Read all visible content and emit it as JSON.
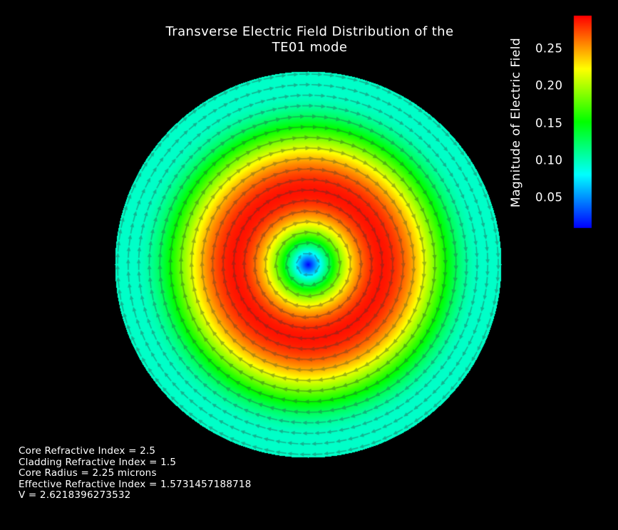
{
  "chart_data": {
    "type": "vector-field-heatmap",
    "title_lines": [
      "Transverse Electric Field Distribution of the",
      "TE01 mode"
    ],
    "colorbar": {
      "label": "Magnitude of Electric Field",
      "ticks": [
        {
          "value": 0.05,
          "label": "0.05"
        },
        {
          "value": 0.1,
          "label": "0.10"
        },
        {
          "value": 0.15,
          "label": "0.15"
        },
        {
          "value": 0.2,
          "label": "0.20"
        },
        {
          "value": 0.25,
          "label": "0.25"
        }
      ],
      "range": [
        0.015,
        0.295
      ],
      "colormap": [
        "#0000ff",
        "#00ffff",
        "#00ff00",
        "#ffff00",
        "#ff0000"
      ]
    },
    "field": {
      "mode": "TE01",
      "direction": "azimuthal",
      "max_magnitude": 0.29,
      "peak_radius_fraction": 0.38,
      "edge_magnitude": 0.1,
      "center_magnitude": 0.015
    },
    "background": "#000000",
    "parameters": [
      "Core Refractive Index = 2.5",
      "Cladding Refractive Index = 1.5",
      "Core Radius = 2.25 microns",
      "Effective Refractive Index = 1.5731457188718",
      "V = 2.6218396273532"
    ]
  }
}
